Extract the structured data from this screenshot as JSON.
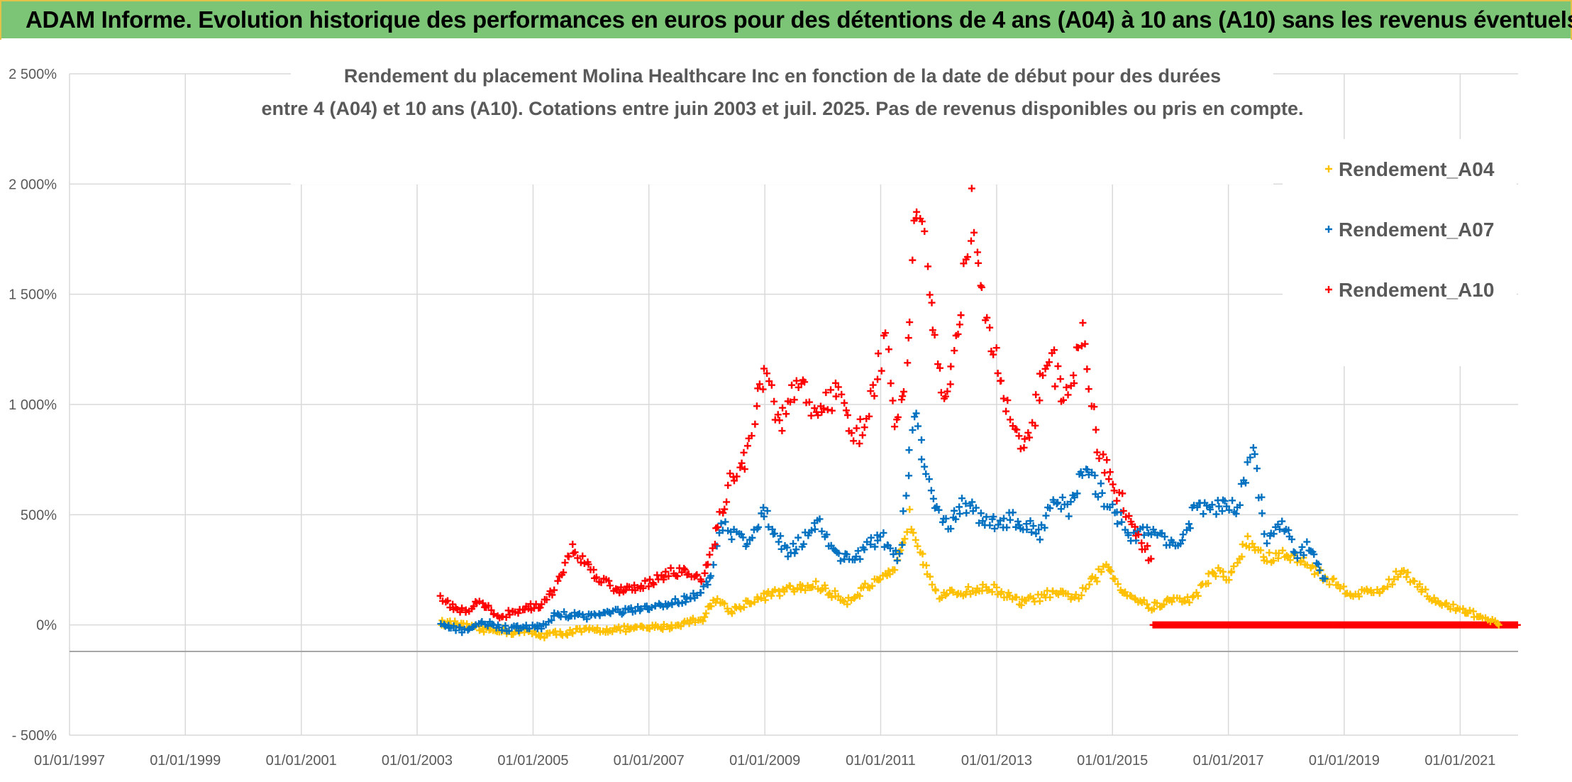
{
  "header": {
    "title": "ADAM Informe. Evolution historique des performances en euros pour des détentions de 4 ans (A04) à 10 ans (A10) sans les revenus éventuels"
  },
  "chart_data": {
    "type": "scatter",
    "title_lines": [
      "Rendement du placement Molina Healthcare Inc en fonction de la date de début pour des durées",
      "entre 4 (A04) et 10 ans (A10). Cotations entre juin 2003 et juil. 2025. Pas de revenus disponibles ou pris en compte."
    ],
    "xlabel": "",
    "ylabel": "",
    "x_ticks": [
      "01/01/1997",
      "01/01/1999",
      "01/01/2001",
      "01/01/2003",
      "01/01/2005",
      "01/01/2007",
      "01/01/2009",
      "01/01/2011",
      "01/01/2013",
      "01/01/2015",
      "01/01/2017",
      "01/01/2019",
      "01/01/2021"
    ],
    "y_ticks": [
      "- 500%",
      "0%",
      "500%",
      "1 000%",
      "1 500%",
      "2 000%",
      "2 500%"
    ],
    "xlim": [
      "1997-01-01",
      "2022-01-01"
    ],
    "ylim": [
      -500,
      2500
    ],
    "grid": true,
    "legend_position": "top-right",
    "marker": "+",
    "series": [
      {
        "name": "Rendement_A04",
        "color": "#ffc000",
        "points": [
          [
            "2003-06-01",
            10
          ],
          [
            "2003-09-01",
            5
          ],
          [
            "2003-12-01",
            -10
          ],
          [
            "2004-03-01",
            -25
          ],
          [
            "2004-06-01",
            -20
          ],
          [
            "2004-09-01",
            -35
          ],
          [
            "2004-12-01",
            -30
          ],
          [
            "2005-03-01",
            -45
          ],
          [
            "2005-06-01",
            -40
          ],
          [
            "2005-09-01",
            -30
          ],
          [
            "2005-12-01",
            -25
          ],
          [
            "2006-06-01",
            -20
          ],
          [
            "2006-12-01",
            -15
          ],
          [
            "2007-06-01",
            -5
          ],
          [
            "2007-12-01",
            30
          ],
          [
            "2008-03-01",
            120
          ],
          [
            "2008-06-01",
            60
          ],
          [
            "2008-09-01",
            100
          ],
          [
            "2009-01-01",
            130
          ],
          [
            "2009-06-01",
            160
          ],
          [
            "2009-12-01",
            180
          ],
          [
            "2010-03-01",
            140
          ],
          [
            "2010-06-01",
            110
          ],
          [
            "2010-10-01",
            170
          ],
          [
            "2011-01-01",
            200
          ],
          [
            "2011-04-01",
            240
          ],
          [
            "2011-07-01",
            490
          ],
          [
            "2011-10-01",
            300
          ],
          [
            "2012-01-01",
            130
          ],
          [
            "2012-06-01",
            150
          ],
          [
            "2012-12-01",
            170
          ],
          [
            "2013-06-01",
            100
          ],
          [
            "2013-12-01",
            140
          ],
          [
            "2014-06-01",
            130
          ],
          [
            "2014-12-01",
            270
          ],
          [
            "2015-03-01",
            160
          ],
          [
            "2015-09-01",
            80
          ],
          [
            "2016-01-01",
            110
          ],
          [
            "2016-06-01",
            120
          ],
          [
            "2016-10-01",
            250
          ],
          [
            "2017-01-01",
            210
          ],
          [
            "2017-05-01",
            380
          ],
          [
            "2017-09-01",
            300
          ],
          [
            "2018-01-01",
            320
          ],
          [
            "2018-06-01",
            270
          ],
          [
            "2018-10-01",
            200
          ],
          [
            "2019-03-01",
            140
          ],
          [
            "2019-09-01",
            160
          ],
          [
            "2020-01-01",
            250
          ],
          [
            "2020-04-01",
            190
          ],
          [
            "2020-08-01",
            100
          ],
          [
            "2021-01-01",
            70
          ],
          [
            "2021-05-01",
            40
          ],
          [
            "2021-09-01",
            0
          ]
        ]
      },
      {
        "name": "Rendement_A07",
        "color": "#0070c0",
        "points": [
          [
            "2003-06-01",
            0
          ],
          [
            "2003-10-01",
            -25
          ],
          [
            "2004-03-01",
            10
          ],
          [
            "2004-08-01",
            -20
          ],
          [
            "2004-12-01",
            -10
          ],
          [
            "2005-03-01",
            -10
          ],
          [
            "2005-06-01",
            50
          ],
          [
            "2005-12-01",
            40
          ],
          [
            "2006-06-01",
            60
          ],
          [
            "2006-12-01",
            70
          ],
          [
            "2007-06-01",
            100
          ],
          [
            "2007-12-01",
            150
          ],
          [
            "2008-02-01",
            220
          ],
          [
            "2008-04-01",
            450
          ],
          [
            "2008-09-01",
            380
          ],
          [
            "2009-01-01",
            510
          ],
          [
            "2009-06-01",
            320
          ],
          [
            "2009-12-01",
            470
          ],
          [
            "2010-04-01",
            310
          ],
          [
            "2010-08-01",
            310
          ],
          [
            "2011-01-01",
            400
          ],
          [
            "2011-05-01",
            300
          ],
          [
            "2011-08-01",
            950
          ],
          [
            "2011-11-01",
            620
          ],
          [
            "2012-03-01",
            440
          ],
          [
            "2012-06-01",
            560
          ],
          [
            "2012-11-01",
            460
          ],
          [
            "2013-04-01",
            480
          ],
          [
            "2013-10-01",
            420
          ],
          [
            "2014-01-01",
            590
          ],
          [
            "2014-04-01",
            510
          ],
          [
            "2014-07-01",
            700
          ],
          [
            "2014-11-01",
            590
          ],
          [
            "2015-05-01",
            410
          ],
          [
            "2015-10-01",
            420
          ],
          [
            "2016-03-01",
            360
          ],
          [
            "2016-06-01",
            520
          ],
          [
            "2016-12-01",
            540
          ],
          [
            "2017-03-01",
            520
          ],
          [
            "2017-06-01",
            800
          ],
          [
            "2017-09-01",
            380
          ],
          [
            "2017-12-01",
            460
          ],
          [
            "2018-03-01",
            320
          ],
          [
            "2018-06-01",
            360
          ],
          [
            "2018-09-01",
            210
          ]
        ]
      },
      {
        "name": "Rendement_A10",
        "color": "#ff0000",
        "points": [
          [
            "2003-06-01",
            120
          ],
          [
            "2003-10-01",
            60
          ],
          [
            "2004-02-01",
            100
          ],
          [
            "2004-06-01",
            40
          ],
          [
            "2004-12-01",
            80
          ],
          [
            "2005-03-01",
            90
          ],
          [
            "2005-06-01",
            180
          ],
          [
            "2005-09-01",
            350
          ],
          [
            "2006-01-01",
            250
          ],
          [
            "2006-06-01",
            160
          ],
          [
            "2006-12-01",
            180
          ],
          [
            "2007-06-01",
            250
          ],
          [
            "2007-12-01",
            210
          ],
          [
            "2008-03-01",
            420
          ],
          [
            "2008-06-01",
            650
          ],
          [
            "2008-09-01",
            750
          ],
          [
            "2009-01-01",
            1150
          ],
          [
            "2009-04-01",
            900
          ],
          [
            "2009-08-01",
            1100
          ],
          [
            "2009-12-01",
            960
          ],
          [
            "2010-04-01",
            1050
          ],
          [
            "2010-08-01",
            850
          ],
          [
            "2010-11-01",
            1000
          ],
          [
            "2011-02-01",
            1300
          ],
          [
            "2011-04-01",
            950
          ],
          [
            "2011-06-01",
            1000
          ],
          [
            "2011-08-01",
            1750
          ],
          [
            "2011-09-01",
            2050
          ],
          [
            "2011-11-01",
            1450
          ],
          [
            "2012-02-01",
            1050
          ],
          [
            "2012-05-01",
            1300
          ],
          [
            "2012-08-01",
            1900
          ],
          [
            "2012-11-01",
            1350
          ],
          [
            "2013-03-01",
            1000
          ],
          [
            "2013-07-01",
            800
          ],
          [
            "2013-12-01",
            1250
          ],
          [
            "2014-03-01",
            1000
          ],
          [
            "2014-07-01",
            1300
          ],
          [
            "2014-10-01",
            800
          ],
          [
            "2015-02-01",
            600
          ],
          [
            "2015-06-01",
            420
          ],
          [
            "2015-09-01",
            300
          ]
        ]
      }
    ]
  }
}
